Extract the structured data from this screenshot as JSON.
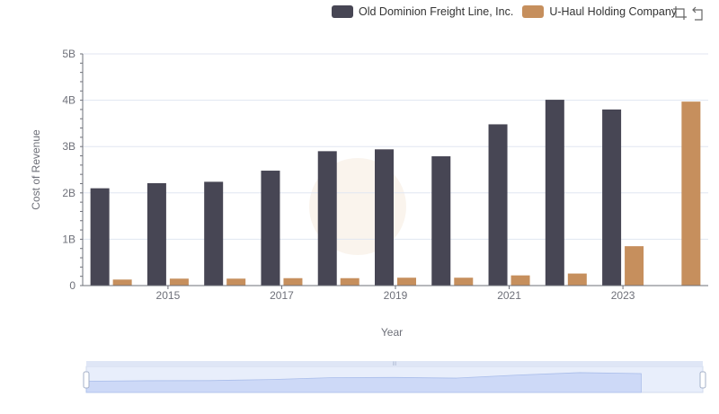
{
  "legend": [
    {
      "label": "Old Dominion Freight Line, Inc.",
      "color": "#474654"
    },
    {
      "label": "U-Haul Holding Company",
      "color": "#c68f5d"
    }
  ],
  "toolbar": {
    "zoom_icon": "zoom-icon",
    "restore_icon": "restore-icon"
  },
  "chart_data": {
    "type": "bar",
    "xlabel": "Year",
    "ylabel": "Cost of Revenue",
    "categories": [
      2014,
      2015,
      2016,
      2017,
      2018,
      2019,
      2020,
      2021,
      2022,
      2023,
      2024
    ],
    "x_tick_labels": [
      "2015",
      "2017",
      "2019",
      "2021",
      "2023"
    ],
    "y_ticks": [
      0,
      1000000000,
      2000000000,
      3000000000,
      4000000000,
      5000000000
    ],
    "y_tick_labels": [
      "0",
      "1B",
      "2B",
      "3B",
      "4B",
      "5B"
    ],
    "ylim": [
      0,
      5000000000
    ],
    "grid": true,
    "legend_position": "top-right",
    "series": [
      {
        "name": "Old Dominion Freight Line, Inc.",
        "color": "#474654",
        "values": [
          2100000000,
          2210000000,
          2240000000,
          2480000000,
          2900000000,
          2940000000,
          2790000000,
          3480000000,
          4010000000,
          3800000000,
          null
        ]
      },
      {
        "name": "U-Haul Holding Company",
        "color": "#c68f5d",
        "values": [
          130000000,
          150000000,
          150000000,
          160000000,
          160000000,
          170000000,
          170000000,
          220000000,
          260000000,
          850000000,
          3970000000
        ]
      }
    ]
  },
  "data_zoom": {
    "start_percent": 0,
    "end_percent": 100,
    "handle_label": "III"
  }
}
